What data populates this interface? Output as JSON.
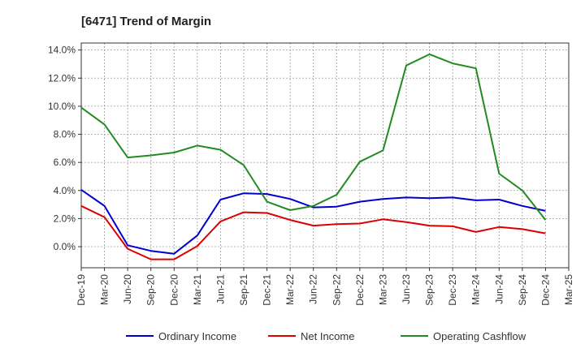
{
  "chart_data": {
    "type": "line",
    "title": "[6471]  Trend of Margin",
    "categories": [
      "Dec-19",
      "Mar-20",
      "Jun-20",
      "Sep-20",
      "Dec-20",
      "Mar-21",
      "Jun-21",
      "Sep-21",
      "Dec-21",
      "Mar-22",
      "Jun-22",
      "Sep-22",
      "Dec-22",
      "Mar-23",
      "Jun-23",
      "Sep-23",
      "Dec-23",
      "Mar-24",
      "Jun-24",
      "Sep-24",
      "Dec-24",
      "Mar-25"
    ],
    "yticks": [
      "0.0%",
      "2.0%",
      "4.0%",
      "6.0%",
      "8.0%",
      "10.0%",
      "12.0%",
      "14.0%"
    ],
    "ylim": [
      -1.5,
      14.5
    ],
    "grid": true,
    "legend_position": "bottom",
    "series": [
      {
        "name": "Ordinary Income",
        "color": "#0000cc",
        "values": [
          4.05,
          2.9,
          0.1,
          -0.3,
          -0.5,
          0.8,
          3.35,
          3.8,
          3.75,
          3.4,
          2.8,
          2.85,
          3.2,
          3.4,
          3.5,
          3.45,
          3.5,
          3.3,
          3.35,
          2.9,
          2.55,
          null
        ]
      },
      {
        "name": "Net Income",
        "color": "#dd0000",
        "values": [
          2.9,
          2.1,
          -0.15,
          -0.9,
          -0.9,
          0.05,
          1.8,
          2.45,
          2.4,
          1.9,
          1.5,
          1.6,
          1.65,
          1.95,
          1.75,
          1.5,
          1.45,
          1.05,
          1.4,
          1.25,
          0.95,
          null
        ]
      },
      {
        "name": "Operating Cashflow",
        "color": "#228b22",
        "values": [
          9.9,
          8.7,
          6.35,
          6.5,
          6.7,
          7.2,
          6.9,
          5.8,
          3.2,
          2.6,
          2.9,
          3.7,
          6.05,
          6.85,
          12.9,
          13.7,
          13.05,
          12.7,
          5.2,
          4.0,
          1.9,
          null
        ]
      }
    ]
  }
}
